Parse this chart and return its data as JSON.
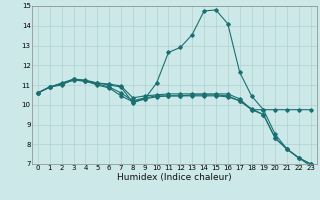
{
  "title": "",
  "xlabel": "Humidex (Indice chaleur)",
  "ylabel": "",
  "xlim": [
    -0.5,
    23.5
  ],
  "ylim": [
    7,
    15
  ],
  "xticks": [
    0,
    1,
    2,
    3,
    4,
    5,
    6,
    7,
    8,
    9,
    10,
    11,
    12,
    13,
    14,
    15,
    16,
    17,
    18,
    19,
    20,
    21,
    22,
    23
  ],
  "yticks": [
    7,
    8,
    9,
    10,
    11,
    12,
    13,
    14,
    15
  ],
  "bg_color": "#cce8e8",
  "grid_color": "#b0d0d0",
  "line_color": "#1a7070",
  "series": [
    [
      10.6,
      10.9,
      11.0,
      11.3,
      11.25,
      11.1,
      11.0,
      10.9,
      10.1,
      10.3,
      11.1,
      12.65,
      12.9,
      13.55,
      14.75,
      14.8,
      14.1,
      11.65,
      10.45,
      9.75,
      8.5,
      7.75,
      7.3,
      6.9
    ],
    [
      10.6,
      10.9,
      11.1,
      11.3,
      11.2,
      11.1,
      11.05,
      10.95,
      10.35,
      10.45,
      10.5,
      10.55,
      10.55,
      10.55,
      10.55,
      10.55,
      10.55,
      10.3,
      9.75,
      9.75,
      9.75,
      9.75,
      9.75,
      9.75
    ],
    [
      10.6,
      10.9,
      11.05,
      11.25,
      11.2,
      11.05,
      10.9,
      10.6,
      10.2,
      10.35,
      10.45,
      10.45,
      10.45,
      10.5,
      10.5,
      10.5,
      10.45,
      10.2,
      9.8,
      9.5,
      8.3,
      7.75,
      7.3,
      7.0
    ],
    [
      10.6,
      10.9,
      11.05,
      11.25,
      11.2,
      11.0,
      10.85,
      10.45,
      10.15,
      10.3,
      10.4,
      10.45,
      10.45,
      10.45,
      10.45,
      10.45,
      10.4,
      10.2,
      9.75,
      9.5,
      8.3,
      7.75,
      7.3,
      7.0
    ]
  ],
  "xlabel_fontsize": 6.5,
  "tick_fontsize": 5.0
}
